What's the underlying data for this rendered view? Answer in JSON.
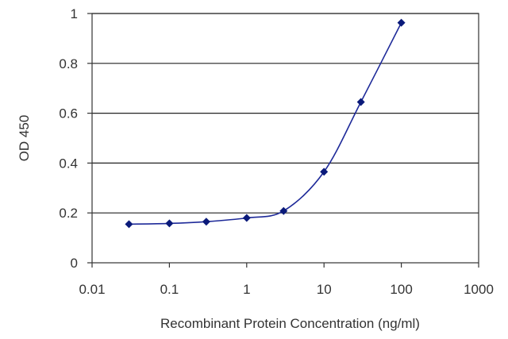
{
  "chart_data": {
    "type": "line",
    "title": "",
    "xlabel": "Recombinant Protein Concentration (ng/ml)",
    "ylabel": "OD 450",
    "x_scale": "log",
    "xlim": [
      0.01,
      1000
    ],
    "ylim": [
      0,
      1
    ],
    "x_ticks": [
      "0.01",
      "0.1",
      "1",
      "10",
      "100",
      "1000"
    ],
    "y_ticks": [
      "0",
      "0.2",
      "0.4",
      "0.6",
      "0.8",
      "1"
    ],
    "grid": "horizontal",
    "legend": "none",
    "series": [
      {
        "x": [
          0.03,
          0.1,
          0.3,
          1,
          3,
          10,
          30,
          100
        ],
        "y": [
          0.155,
          0.158,
          0.165,
          0.18,
          0.208,
          0.365,
          0.645,
          0.963
        ]
      }
    ],
    "colors": {
      "line": "#1e2a99",
      "marker": "#0a1a7a",
      "grid": "#222222",
      "frame": "#333333"
    }
  }
}
